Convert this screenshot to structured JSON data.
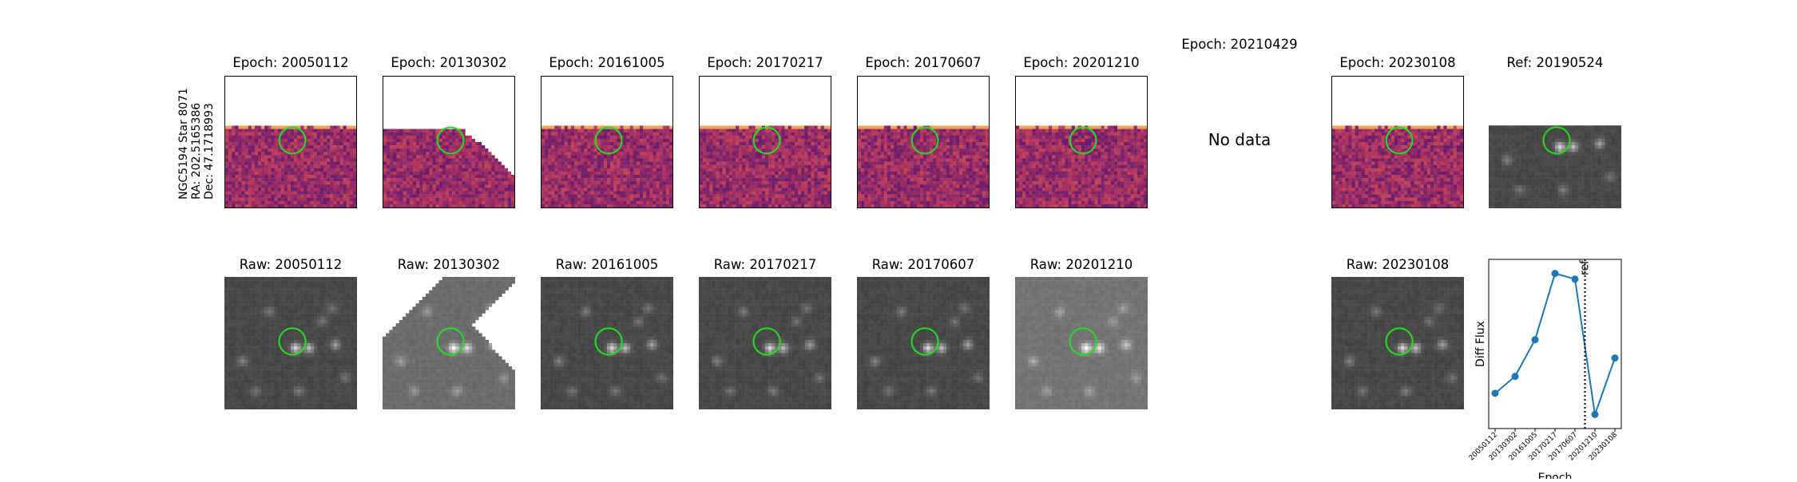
{
  "side_label": [
    "NGC5194 Star 8071",
    "RA: 202.5165386",
    "Dec: 47.1718993"
  ],
  "top_row": [
    {
      "title": "Epoch: 20050112",
      "cmap": "inferno-diff",
      "edge": "top-flat"
    },
    {
      "title": "Epoch: 20130302",
      "cmap": "inferno-diff",
      "edge": "diagonal"
    },
    {
      "title": "Epoch: 20161005",
      "cmap": "inferno-diff",
      "edge": "top-flat"
    },
    {
      "title": "Epoch: 20170217",
      "cmap": "inferno-diff",
      "edge": "top-flat"
    },
    {
      "title": "Epoch: 20170607",
      "cmap": "inferno-diff",
      "edge": "top-flat"
    },
    {
      "title": "Epoch: 20201210",
      "cmap": "inferno-diff",
      "edge": "top-flat"
    },
    {
      "title": "Epoch: 20210429",
      "no_data": "No data"
    },
    {
      "title": "Epoch: 20230108",
      "cmap": "inferno-diff",
      "edge": "top-flat"
    },
    {
      "title": "Ref: 20190524",
      "cmap": "gray",
      "edge": "top-flat"
    }
  ],
  "bottom_row": [
    {
      "title": "Raw: 20050112",
      "cmap": "gray"
    },
    {
      "title": "Raw: 20130302",
      "cmap": "gray",
      "edge": "diagonal"
    },
    {
      "title": "Raw: 20161005",
      "cmap": "gray"
    },
    {
      "title": "Raw: 20170217",
      "cmap": "gray"
    },
    {
      "title": "Raw: 20170607",
      "cmap": "gray"
    },
    {
      "title": "Raw: 20201210",
      "cmap": "gray-light"
    },
    null,
    {
      "title": "Raw: 20230108",
      "cmap": "gray"
    }
  ],
  "colors": {
    "marker": "#22dd22",
    "line": "#1f77b4"
  },
  "chart_data": {
    "type": "line",
    "categories": [
      "20050112",
      "20130302",
      "20161005",
      "20170217",
      "20170607",
      "20201210",
      "20230108"
    ],
    "values": [
      0.1,
      0.22,
      0.48,
      0.95,
      0.91,
      -0.05,
      0.35
    ],
    "ylim": [
      -0.15,
      1.05
    ],
    "xlabel": "Epoch",
    "ylabel": "Diff Flux",
    "vline": {
      "after_index": 4,
      "label": "ref",
      "style": "dotted"
    },
    "grid": false
  }
}
